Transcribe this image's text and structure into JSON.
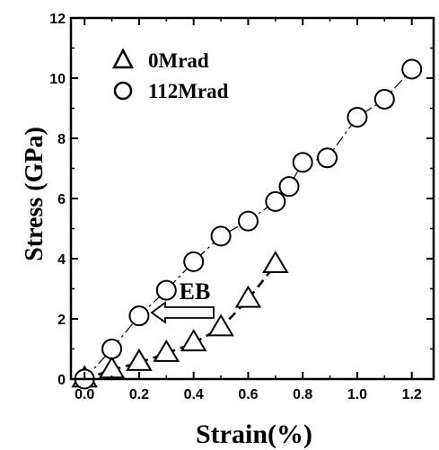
{
  "chart_data": {
    "type": "scatter",
    "xlabel": "Strain(%)",
    "ylabel": "Stress (GPa)",
    "xlim": [
      -0.05,
      1.28
    ],
    "ylim": [
      0,
      12
    ],
    "x_ticks": [
      "0.0",
      "0.2",
      "0.4",
      "0.6",
      "0.8",
      "1.0",
      "1.2"
    ],
    "y_ticks": [
      "0",
      "2",
      "4",
      "6",
      "8",
      "10",
      "12"
    ],
    "legend_position": "top-left",
    "annotation": "EB",
    "series": [
      {
        "name": "0Mrad",
        "marker": "triangle",
        "line_style": "dashed",
        "x": [
          0.0,
          0.1,
          0.2,
          0.3,
          0.4,
          0.5,
          0.6,
          0.7
        ],
        "y": [
          0.0,
          0.3,
          0.55,
          0.85,
          1.2,
          1.7,
          2.65,
          3.8
        ]
      },
      {
        "name": "112Mrad",
        "marker": "circle",
        "line_style": "dash-dot",
        "x": [
          0.0,
          0.1,
          0.2,
          0.3,
          0.4,
          0.5,
          0.6,
          0.7,
          0.75,
          0.8,
          0.89,
          1.0,
          1.1,
          1.2
        ],
        "y": [
          0.0,
          1.0,
          2.1,
          2.95,
          3.9,
          4.75,
          5.25,
          5.9,
          6.4,
          7.2,
          7.35,
          8.7,
          9.3,
          10.3
        ]
      }
    ]
  }
}
